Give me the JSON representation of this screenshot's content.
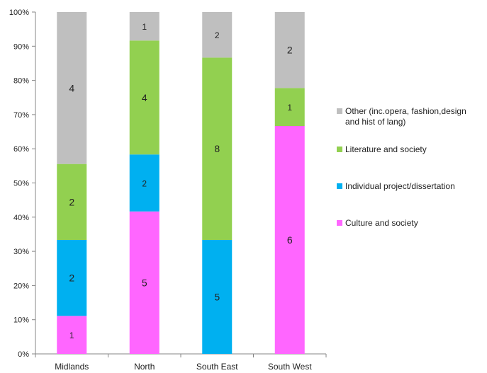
{
  "chart_data": {
    "type": "bar",
    "stacked": true,
    "normalized_percent": true,
    "categories": [
      "Midlands",
      "North",
      "South East",
      "South West"
    ],
    "series": [
      {
        "name": "Culture and society",
        "color": "#ff66ff",
        "values": [
          1,
          5,
          0,
          6
        ]
      },
      {
        "name": "Individual project/dissertation",
        "color": "#00b0f0",
        "values": [
          2,
          2,
          5,
          0
        ]
      },
      {
        "name": "Literature and society",
        "color": "#92d050",
        "values": [
          2,
          4,
          8,
          1
        ]
      },
      {
        "name": "Other (inc.opera, fashion,design and hist of lang)",
        "color": "#bfbfbf",
        "values": [
          4,
          1,
          2,
          2
        ]
      }
    ],
    "legend_lines": [
      [
        "Other (inc.opera, fashion,design",
        "and hist of lang)"
      ],
      [
        "Literature and society"
      ],
      [
        "Individual project/dissertation"
      ],
      [
        "Culture and society"
      ]
    ],
    "yticks": [
      "0%",
      "10%",
      "20%",
      "30%",
      "40%",
      "50%",
      "60%",
      "70%",
      "80%",
      "90%",
      "100%"
    ],
    "ylim": [
      0,
      100
    ],
    "grid": false,
    "legend_position": "right"
  }
}
